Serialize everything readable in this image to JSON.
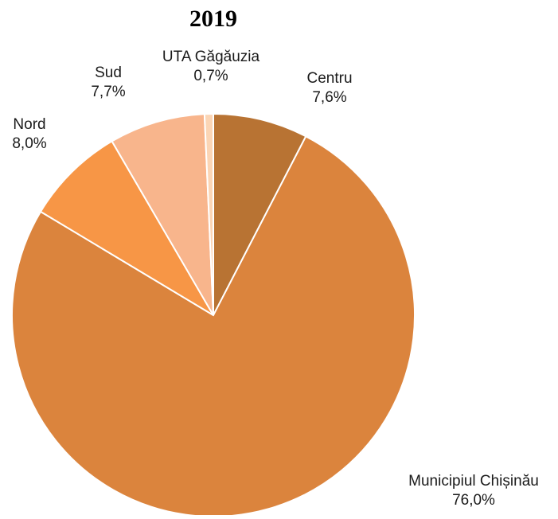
{
  "chart_data": {
    "type": "pie",
    "title": "2019",
    "slices": [
      {
        "label": "Centru",
        "value_label": "7,6%",
        "value": 7.6,
        "color": "#b87333"
      },
      {
        "label": "Municipiul Chișinău",
        "value_label": "76,0%",
        "value": 76.0,
        "color": "#db843d"
      },
      {
        "label": "Nord",
        "value_label": "8,0%",
        "value": 8.0,
        "color": "#f79646"
      },
      {
        "label": "Sud",
        "value_label": "7,7%",
        "value": 7.7,
        "color": "#f8b58c"
      },
      {
        "label": "UTA Găgăuzia",
        "value_label": "0,7%",
        "value": 0.7,
        "color": "#fbd5b5"
      }
    ],
    "start_angle_deg": 0,
    "direction": "clockwise",
    "legend": "none"
  }
}
